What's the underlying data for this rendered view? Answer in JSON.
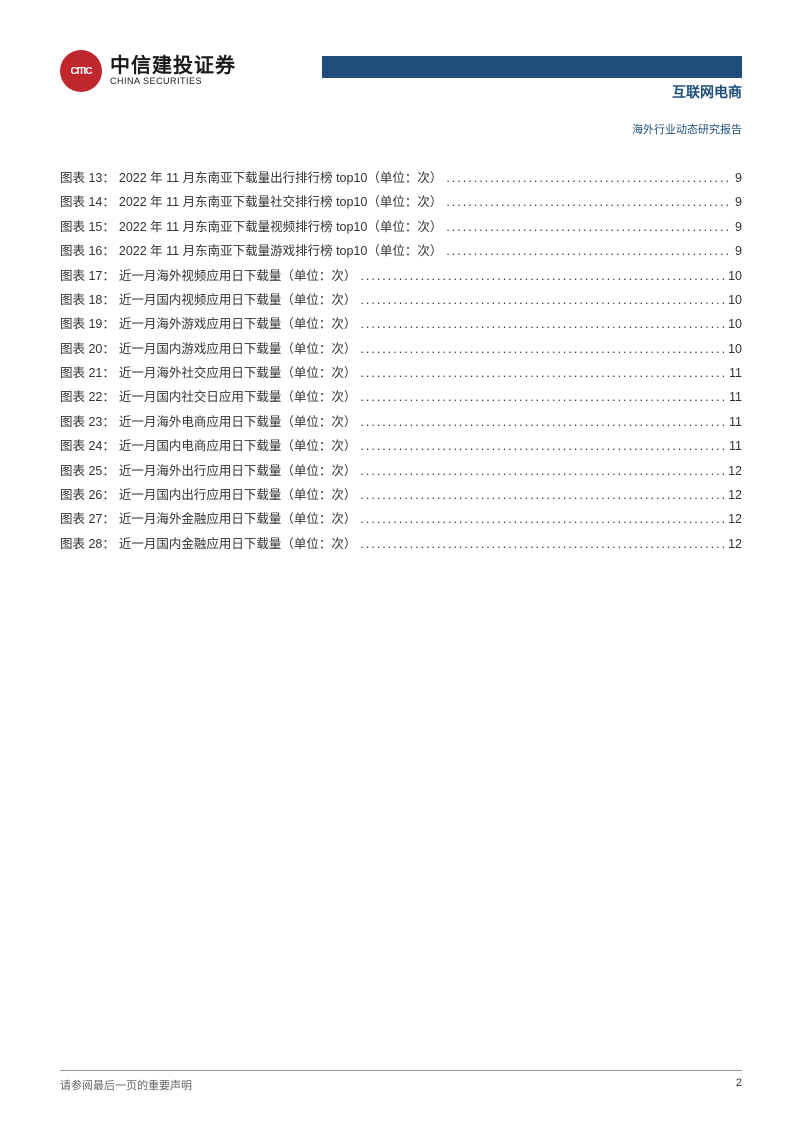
{
  "header": {
    "logo_cn": "中信建投证券",
    "logo_en": "CHINA SECURITIES",
    "logo_mark": "CITIC",
    "category": "互联网电商",
    "subtitle": "海外行业动态研究报告",
    "bar_color": "#1f4e79",
    "logo_color": "#c0272d"
  },
  "toc": [
    {
      "label": "图表 13：",
      "title": "2022 年 11 月东南亚下载量出行排行榜 top10（单位：次）",
      "page": "9"
    },
    {
      "label": "图表 14：",
      "title": "2022 年 11 月东南亚下载量社交排行榜 top10（单位：次）",
      "page": "9"
    },
    {
      "label": "图表 15：",
      "title": "2022 年 11 月东南亚下载量视频排行榜 top10（单位：次）",
      "page": "9"
    },
    {
      "label": "图表 16：",
      "title": "2022 年 11 月东南亚下载量游戏排行榜 top10（单位：次）",
      "page": "9"
    },
    {
      "label": "图表 17：",
      "title": "近一月海外视频应用日下载量（单位：次）",
      "page": "10"
    },
    {
      "label": "图表 18：",
      "title": "近一月国内视频应用日下载量（单位：次）",
      "page": "10"
    },
    {
      "label": "图表 19：",
      "title": "近一月海外游戏应用日下载量（单位：次）",
      "page": "10"
    },
    {
      "label": "图表 20：",
      "title": "近一月国内游戏应用日下载量（单位：次）",
      "page": "10"
    },
    {
      "label": "图表 21：",
      "title": "近一月海外社交应用日下载量（单位：次）",
      "page": "11"
    },
    {
      "label": "图表 22：",
      "title": "近一月国内社交日应用下载量（单位：次）",
      "page": "11"
    },
    {
      "label": "图表 23：",
      "title": "近一月海外电商应用日下载量（单位：次）",
      "page": "11"
    },
    {
      "label": "图表 24：",
      "title": "近一月国内电商应用日下载量（单位：次）",
      "page": "11"
    },
    {
      "label": "图表 25：",
      "title": "近一月海外出行应用日下载量（单位：次）",
      "page": "12"
    },
    {
      "label": "图表 26：",
      "title": "近一月国内出行应用日下载量（单位：次）",
      "page": "12"
    },
    {
      "label": "图表 27：",
      "title": "近一月海外金融应用日下载量（单位：次）",
      "page": "12"
    },
    {
      "label": "图表 28：",
      "title": "近一月国内金融应用日下载量（单位：次）",
      "page": "12"
    }
  ],
  "footer": {
    "disclaimer": "请参阅最后一页的重要声明",
    "page_number": "2"
  }
}
